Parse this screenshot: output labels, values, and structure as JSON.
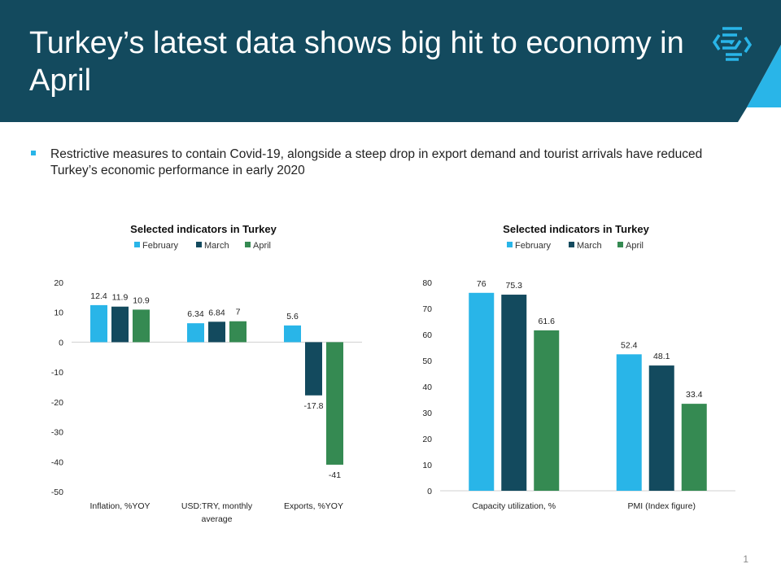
{
  "header": {
    "title": "Turkey’s latest data shows big hit to economy in April",
    "logo": "stacked-chevrons-logo",
    "colors": {
      "dark": "#134a5e",
      "accent": "#29b5e8"
    }
  },
  "bullet": {
    "text": "Restrictive measures to contain Covid-19, alongside a steep drop in export demand and tourist arrivals have reduced Turkey’s economic performance in early 2020"
  },
  "page_number": "1",
  "chart_data": [
    {
      "type": "bar",
      "title": "Selected indicators in Turkey",
      "legend_position": "top",
      "grid": false,
      "categories": [
        "Inflation, %YOY",
        "USD:TRY, monthly average",
        "Exports, %YOY"
      ],
      "series": [
        {
          "name": "February",
          "color": "#29b5e8",
          "values": [
            12.4,
            6.34,
            5.6
          ],
          "labels": [
            "12.4",
            "6.34",
            "5.6"
          ]
        },
        {
          "name": "March",
          "color": "#134a5e",
          "values": [
            11.9,
            6.84,
            -17.8
          ],
          "labels": [
            "11.9",
            "6.84",
            "-17.8"
          ]
        },
        {
          "name": "April",
          "color": "#358a52",
          "values": [
            10.9,
            7,
            -41
          ],
          "labels": [
            "10.9",
            "7",
            "-41"
          ]
        }
      ],
      "ylim": [
        -50,
        20
      ],
      "yticks": [
        "20",
        "10",
        "0",
        "-10",
        "-20",
        "-30",
        "-40",
        "-50"
      ]
    },
    {
      "type": "bar",
      "title": "Selected indicators in Turkey",
      "legend_position": "top",
      "grid": false,
      "categories": [
        "Capacity utilization, %",
        "PMI (Index figure)"
      ],
      "series": [
        {
          "name": "February",
          "color": "#29b5e8",
          "values": [
            76,
            52.4
          ],
          "labels": [
            "76",
            "52.4"
          ]
        },
        {
          "name": "March",
          "color": "#134a5e",
          "values": [
            75.3,
            48.1
          ],
          "labels": [
            "75.3",
            "48.1"
          ]
        },
        {
          "name": "April",
          "color": "#358a52",
          "values": [
            61.6,
            33.4
          ],
          "labels": [
            "61.6",
            "33.4"
          ]
        }
      ],
      "ylim": [
        0,
        80
      ],
      "yticks": [
        "80",
        "70",
        "60",
        "50",
        "40",
        "30",
        "20",
        "10",
        "0"
      ]
    }
  ]
}
